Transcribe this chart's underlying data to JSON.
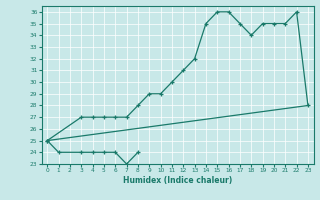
{
  "xlabel": "Humidex (Indice chaleur)",
  "bg_color": "#c8e8e8",
  "line_color": "#1a7a6a",
  "grid_color": "#ffffff",
  "xlim": [
    -0.5,
    23.5
  ],
  "ylim": [
    23,
    36.5
  ],
  "yticks": [
    23,
    24,
    25,
    26,
    27,
    28,
    29,
    30,
    31,
    32,
    33,
    34,
    35,
    36
  ],
  "xticks": [
    0,
    1,
    2,
    3,
    4,
    5,
    6,
    7,
    8,
    9,
    10,
    11,
    12,
    13,
    14,
    15,
    16,
    17,
    18,
    19,
    20,
    21,
    22,
    23
  ],
  "series1_x": [
    0,
    1,
    3,
    4,
    5,
    6,
    7,
    8
  ],
  "series1_y": [
    25,
    24,
    24,
    24,
    24,
    24,
    23,
    24
  ],
  "series2_x": [
    0,
    3,
    4,
    5,
    6,
    7,
    8,
    9,
    10,
    11,
    12,
    13,
    14,
    15,
    16,
    17,
    18,
    19,
    20,
    21,
    22,
    23
  ],
  "series2_y": [
    25,
    27,
    27,
    27,
    27,
    27,
    28,
    29,
    29,
    30,
    31,
    32,
    35,
    36,
    36,
    35,
    34,
    35,
    35,
    35,
    36,
    28
  ],
  "series3_x": [
    0,
    23
  ],
  "series3_y": [
    25,
    28
  ]
}
